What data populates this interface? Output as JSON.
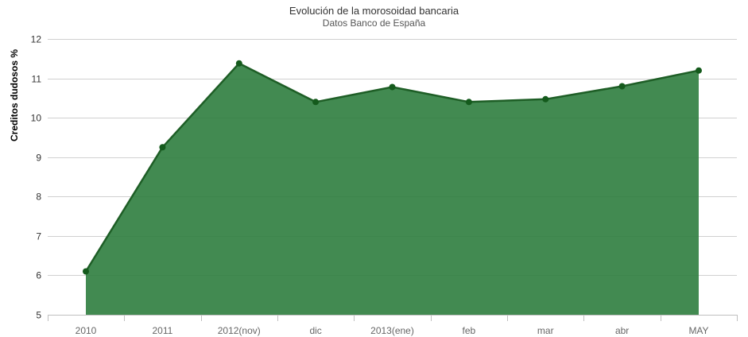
{
  "chart_data": {
    "type": "area",
    "title": "Evolución de la morosoidad bancaria",
    "subtitle": "Datos Banco de España",
    "ylabel": "Creditos dudosos %",
    "xlabel": "",
    "categories": [
      "2010",
      "2011",
      "2012(nov)",
      "dic",
      "2013(ene)",
      "feb",
      "mar",
      "abr",
      "MAY"
    ],
    "values": [
      6.1,
      9.25,
      11.38,
      10.4,
      10.78,
      10.4,
      10.47,
      10.8,
      11.2
    ],
    "ylim": [
      5,
      12
    ],
    "yticks": [
      5,
      6,
      7,
      8,
      9,
      10,
      11,
      12
    ],
    "grid": true,
    "legend": "none",
    "colors": {
      "fill": "#2e7d3e",
      "line": "#1e5e26",
      "marker": "#145a1c",
      "grid": "#d0d0d0"
    }
  }
}
